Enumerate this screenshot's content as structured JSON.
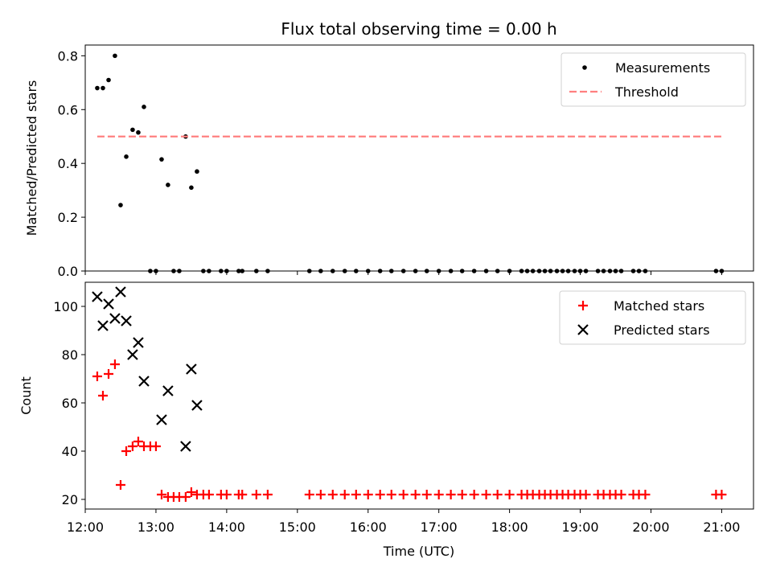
{
  "chart_data": {
    "title": "Flux total observing time = 0.00 h",
    "xlabel": "Time (UTC)",
    "xlim": [
      12.0,
      21.45
    ],
    "x_ticks": [
      {
        "value": 12,
        "label": "12:00"
      },
      {
        "value": 13,
        "label": "13:00"
      },
      {
        "value": 14,
        "label": "14:00"
      },
      {
        "value": 15,
        "label": "15:00"
      },
      {
        "value": 16,
        "label": "16:00"
      },
      {
        "value": 17,
        "label": "17:00"
      },
      {
        "value": 18,
        "label": "18:00"
      },
      {
        "value": 19,
        "label": "19:00"
      },
      {
        "value": 20,
        "label": "20:00"
      },
      {
        "value": 21,
        "label": "21:00"
      }
    ],
    "panels": [
      {
        "type": "scatter",
        "ylabel": "Matched/Predicted stars",
        "ylim": [
          0.0,
          0.84
        ],
        "y_ticks": [
          {
            "value": 0.0,
            "label": "0.0"
          },
          {
            "value": 0.2,
            "label": "0.2"
          },
          {
            "value": 0.4,
            "label": "0.4"
          },
          {
            "value": 0.6,
            "label": "0.6"
          },
          {
            "value": 0.8,
            "label": "0.8"
          }
        ],
        "legend": {
          "position": "upper right",
          "entries": [
            "Measurements",
            "Threshold"
          ]
        },
        "series": [
          {
            "name": "Measurements",
            "color": "#000000",
            "marker": "dot",
            "points": [
              [
                12.17,
                0.68
              ],
              [
                12.25,
                0.68
              ],
              [
                12.33,
                0.71
              ],
              [
                12.42,
                0.8
              ],
              [
                12.5,
                0.245
              ],
              [
                12.58,
                0.425
              ],
              [
                12.67,
                0.525
              ],
              [
                12.75,
                0.515
              ],
              [
                12.83,
                0.61
              ],
              [
                12.92,
                0.0
              ],
              [
                13.0,
                0.0
              ],
              [
                13.08,
                0.415
              ],
              [
                13.17,
                0.32
              ],
              [
                13.25,
                0.0
              ],
              [
                13.33,
                0.0
              ],
              [
                13.42,
                0.5
              ],
              [
                13.5,
                0.31
              ],
              [
                13.58,
                0.37
              ],
              [
                13.67,
                0.0
              ],
              [
                13.75,
                0.0
              ],
              [
                13.92,
                0.0
              ],
              [
                14.0,
                0.0
              ],
              [
                14.17,
                0.0
              ],
              [
                14.22,
                0.0
              ],
              [
                14.42,
                0.0
              ],
              [
                14.58,
                0.0
              ],
              [
                15.17,
                0.0
              ],
              [
                15.33,
                0.0
              ],
              [
                15.5,
                0.0
              ],
              [
                15.67,
                0.0
              ],
              [
                15.83,
                0.0
              ],
              [
                16.0,
                0.0
              ],
              [
                16.17,
                0.0
              ],
              [
                16.33,
                0.0
              ],
              [
                16.5,
                0.0
              ],
              [
                16.67,
                0.0
              ],
              [
                16.83,
                0.0
              ],
              [
                17.0,
                0.0
              ],
              [
                17.17,
                0.0
              ],
              [
                17.33,
                0.0
              ],
              [
                17.5,
                0.0
              ],
              [
                17.67,
                0.0
              ],
              [
                17.83,
                0.0
              ],
              [
                18.0,
                0.0
              ],
              [
                18.17,
                0.0
              ],
              [
                18.25,
                0.0
              ],
              [
                18.33,
                0.0
              ],
              [
                18.42,
                0.0
              ],
              [
                18.5,
                0.0
              ],
              [
                18.58,
                0.0
              ],
              [
                18.67,
                0.0
              ],
              [
                18.75,
                0.0
              ],
              [
                18.83,
                0.0
              ],
              [
                18.92,
                0.0
              ],
              [
                19.0,
                0.0
              ],
              [
                19.08,
                0.0
              ],
              [
                19.25,
                0.0
              ],
              [
                19.33,
                0.0
              ],
              [
                19.42,
                0.0
              ],
              [
                19.5,
                0.0
              ],
              [
                19.58,
                0.0
              ],
              [
                19.75,
                0.0
              ],
              [
                19.83,
                0.0
              ],
              [
                19.92,
                0.0
              ],
              [
                20.92,
                0.0
              ],
              [
                21.0,
                0.0
              ]
            ]
          },
          {
            "name": "Threshold",
            "color": "#ff8080",
            "style": "dashed",
            "points": [
              [
                12.17,
                0.5
              ],
              [
                21.0,
                0.5
              ]
            ]
          }
        ]
      },
      {
        "type": "scatter",
        "ylabel": "Count",
        "ylim": [
          16.0,
          110.0
        ],
        "y_ticks": [
          {
            "value": 20,
            "label": "20"
          },
          {
            "value": 40,
            "label": "40"
          },
          {
            "value": 60,
            "label": "60"
          },
          {
            "value": 80,
            "label": "80"
          },
          {
            "value": 100,
            "label": "100"
          }
        ],
        "legend": {
          "position": "upper right",
          "entries": [
            "Matched stars",
            "Predicted stars"
          ]
        },
        "series": [
          {
            "name": "Matched stars",
            "color": "#ff0000",
            "marker": "plus",
            "points": [
              [
                12.17,
                71
              ],
              [
                12.25,
                63
              ],
              [
                12.33,
                72
              ],
              [
                12.42,
                76
              ],
              [
                12.5,
                26
              ],
              [
                12.58,
                40
              ],
              [
                12.67,
                42
              ],
              [
                12.75,
                44
              ],
              [
                12.83,
                42
              ],
              [
                12.92,
                42
              ],
              [
                13.0,
                42
              ],
              [
                13.08,
                22
              ],
              [
                13.17,
                21
              ],
              [
                13.25,
                21
              ],
              [
                13.33,
                21
              ],
              [
                13.42,
                21
              ],
              [
                13.5,
                23
              ],
              [
                13.58,
                22
              ],
              [
                13.67,
                22
              ],
              [
                13.75,
                22
              ],
              [
                13.92,
                22
              ],
              [
                14.0,
                22
              ],
              [
                14.17,
                22
              ],
              [
                14.22,
                22
              ],
              [
                14.42,
                22
              ],
              [
                14.58,
                22
              ],
              [
                15.17,
                22
              ],
              [
                15.33,
                22
              ],
              [
                15.5,
                22
              ],
              [
                15.67,
                22
              ],
              [
                15.83,
                22
              ],
              [
                16.0,
                22
              ],
              [
                16.17,
                22
              ],
              [
                16.33,
                22
              ],
              [
                16.5,
                22
              ],
              [
                16.67,
                22
              ],
              [
                16.83,
                22
              ],
              [
                17.0,
                22
              ],
              [
                17.17,
                22
              ],
              [
                17.33,
                22
              ],
              [
                17.5,
                22
              ],
              [
                17.67,
                22
              ],
              [
                17.83,
                22
              ],
              [
                18.0,
                22
              ],
              [
                18.17,
                22
              ],
              [
                18.25,
                22
              ],
              [
                18.33,
                22
              ],
              [
                18.42,
                22
              ],
              [
                18.5,
                22
              ],
              [
                18.58,
                22
              ],
              [
                18.67,
                22
              ],
              [
                18.75,
                22
              ],
              [
                18.83,
                22
              ],
              [
                18.92,
                22
              ],
              [
                19.0,
                22
              ],
              [
                19.08,
                22
              ],
              [
                19.25,
                22
              ],
              [
                19.33,
                22
              ],
              [
                19.42,
                22
              ],
              [
                19.5,
                22
              ],
              [
                19.58,
                22
              ],
              [
                19.75,
                22
              ],
              [
                19.83,
                22
              ],
              [
                19.92,
                22
              ],
              [
                20.92,
                22
              ],
              [
                21.0,
                22
              ]
            ]
          },
          {
            "name": "Predicted stars",
            "color": "#000000",
            "marker": "x",
            "points": [
              [
                12.17,
                104
              ],
              [
                12.25,
                92
              ],
              [
                12.33,
                101
              ],
              [
                12.42,
                95
              ],
              [
                12.5,
                106
              ],
              [
                12.58,
                94
              ],
              [
                12.67,
                80
              ],
              [
                12.75,
                85
              ],
              [
                12.83,
                69
              ],
              [
                13.08,
                53
              ],
              [
                13.17,
                65
              ],
              [
                13.42,
                42
              ],
              [
                13.5,
                74
              ],
              [
                13.58,
                59
              ]
            ]
          }
        ]
      }
    ]
  }
}
